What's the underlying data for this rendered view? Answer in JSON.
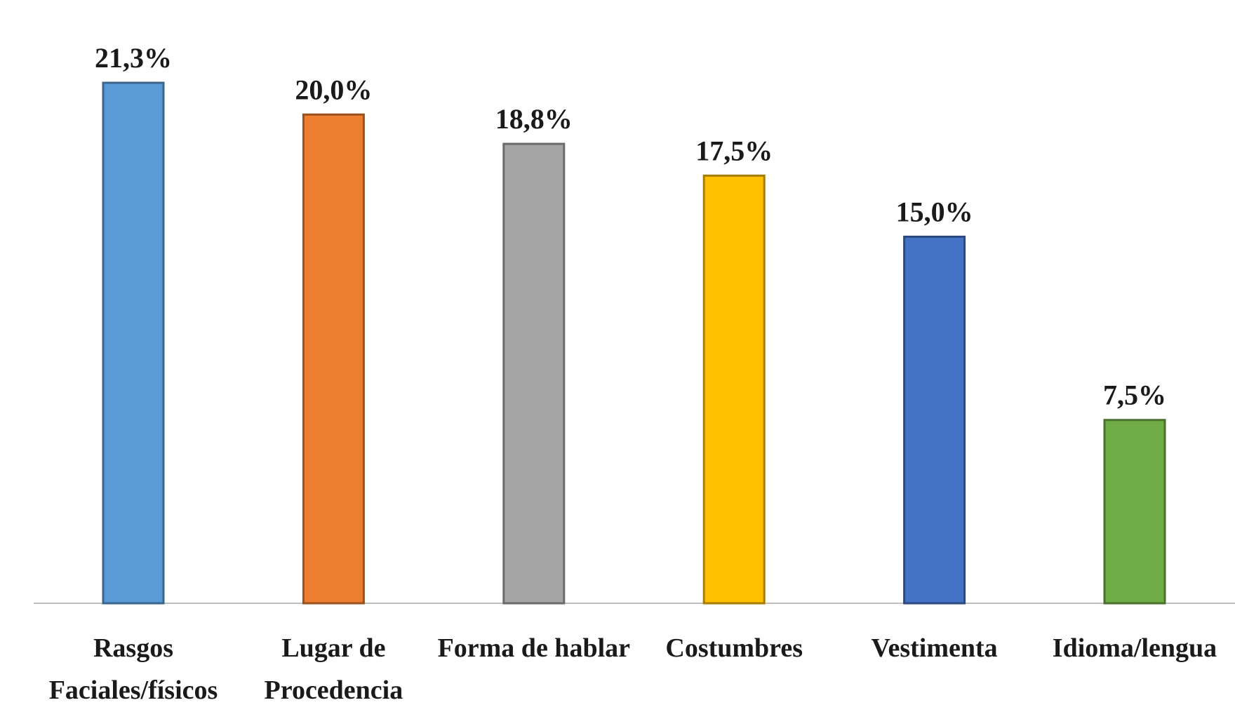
{
  "chart_data": {
    "type": "bar",
    "categories": [
      [
        "Rasgos",
        "Faciales/físicos"
      ],
      [
        "Lugar de",
        "Procedencia"
      ],
      [
        "Forma de hablar"
      ],
      [
        "Costumbres"
      ],
      [
        "Vestimenta"
      ],
      [
        "Idioma/lengua"
      ]
    ],
    "values": [
      21.3,
      20.0,
      18.8,
      17.5,
      15.0,
      7.5
    ],
    "value_labels": [
      "21,3%",
      "20,0%",
      "18,8%",
      "17,5%",
      "15,0%",
      "7,5%"
    ],
    "colors": [
      "#5B9BD5",
      "#ED7D31",
      "#A5A5A5",
      "#FFC000",
      "#4472C4",
      "#70AD47"
    ],
    "title": "",
    "xlabel": "",
    "ylabel": "",
    "ylim": [
      0,
      21.3
    ],
    "grid": false,
    "legend": "none"
  }
}
